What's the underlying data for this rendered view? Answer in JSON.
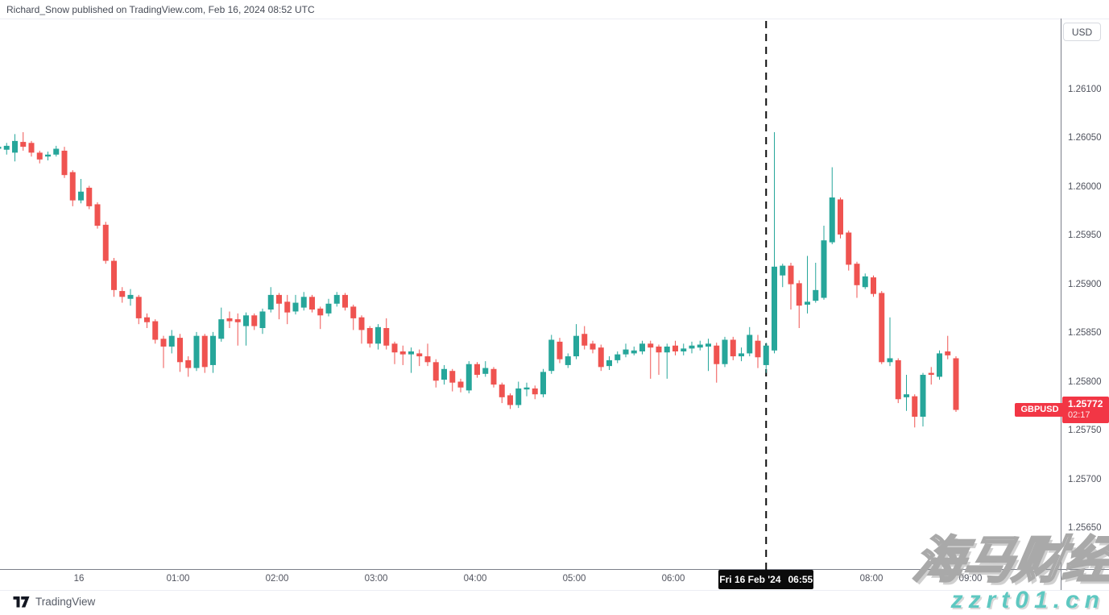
{
  "attribution": "Richard_Snow published on TradingView.com, Feb 16, 2024 08:52 UTC",
  "currency_button_label": "USD",
  "symbol_tag": "GBPUSD",
  "last_price_label": {
    "price": "1.25772",
    "countdown": "02:17"
  },
  "crosshair_label": {
    "date": "Fri 16 Feb '24",
    "time": "06:55"
  },
  "logo_text": "TradingView",
  "watermark": {
    "line1": "海马财经",
    "line2": "zzrt01.cn"
  },
  "colors": {
    "up": "#26a69a",
    "down": "#ef5350",
    "label_bg": "#f23645",
    "axis_line": "#7b7e89",
    "event_line": "#0b0b0b",
    "watermark_url": "#5ec8c1"
  },
  "chart_data": {
    "type": "candlestick",
    "symbol": "GBPUSD",
    "quote_currency": "USD",
    "interval_minutes": 5,
    "last_price": 1.25772,
    "event_line_time": "06:55",
    "y_axis": {
      "min": 1.2561,
      "max": 1.26135,
      "tick_labels": [
        "1.26100",
        "1.26050",
        "1.26000",
        "1.25950",
        "1.25900",
        "1.25850",
        "1.25800",
        "1.25750",
        "1.25700",
        "1.25650"
      ]
    },
    "x_axis": {
      "labels": [
        {
          "text": "16",
          "hour": 0
        },
        {
          "text": "01:00",
          "hour": 1
        },
        {
          "text": "02:00",
          "hour": 2
        },
        {
          "text": "03:00",
          "hour": 3
        },
        {
          "text": "04:00",
          "hour": 4
        },
        {
          "text": "05:00",
          "hour": 5
        },
        {
          "text": "06:00",
          "hour": 6
        },
        {
          "text": "08:00",
          "hour": 8
        },
        {
          "text": "09:00",
          "hour": 9
        }
      ]
    },
    "candles": [
      [
        "23:10",
        1.2604,
        1.26044,
        1.26036,
        1.26042
      ],
      [
        "23:15",
        1.26039,
        1.26046,
        1.26034,
        1.26043
      ],
      [
        "23:20",
        1.26036,
        1.26055,
        1.26027,
        1.26048
      ],
      [
        "23:25",
        1.26047,
        1.26057,
        1.26038,
        1.26042
      ],
      [
        "23:30",
        1.26046,
        1.26048,
        1.26032,
        1.26036
      ],
      [
        "23:35",
        1.26036,
        1.26038,
        1.26025,
        1.26029
      ],
      [
        "23:40",
        1.26032,
        1.26037,
        1.26028,
        1.26034
      ],
      [
        "23:45",
        1.26034,
        1.26043,
        1.26032,
        1.2604
      ],
      [
        "23:50",
        1.26038,
        1.26042,
        1.2601,
        1.26013
      ],
      [
        "23:55",
        1.26016,
        1.26018,
        1.25981,
        1.25987
      ],
      [
        "00:00",
        1.25987,
        1.26009,
        1.25984,
        1.25996
      ],
      [
        "00:05",
        1.26,
        1.26002,
        1.25978,
        1.25981
      ],
      [
        "00:10",
        1.25983,
        1.25985,
        1.25958,
        1.25961
      ],
      [
        "00:15",
        1.25962,
        1.25965,
        1.25922,
        1.25925
      ],
      [
        "00:20",
        1.25925,
        1.25928,
        1.25888,
        1.25895
      ],
      [
        "00:25",
        1.25894,
        1.25898,
        1.25882,
        1.25888
      ],
      [
        "00:30",
        1.25886,
        1.25896,
        1.25879,
        1.2589
      ],
      [
        "00:35",
        1.25888,
        1.2589,
        1.2586,
        1.25866
      ],
      [
        "00:40",
        1.25867,
        1.25871,
        1.25856,
        1.25862
      ],
      [
        "00:45",
        1.25863,
        1.25865,
        1.2584,
        1.25844
      ],
      [
        "00:50",
        1.25845,
        1.25848,
        1.25815,
        1.25837
      ],
      [
        "00:55",
        1.25837,
        1.25854,
        1.2583,
        1.25848
      ],
      [
        "01:00",
        1.25846,
        1.2585,
        1.25811,
        1.25821
      ],
      [
        "01:05",
        1.25823,
        1.25827,
        1.25806,
        1.25815
      ],
      [
        "01:10",
        1.25815,
        1.25852,
        1.25812,
        1.25848
      ],
      [
        "01:15",
        1.25848,
        1.2585,
        1.2581,
        1.25816
      ],
      [
        "01:20",
        1.25818,
        1.25852,
        1.2581,
        1.25848
      ],
      [
        "01:25",
        1.25845,
        1.25877,
        1.25842,
        1.25865
      ],
      [
        "01:30",
        1.25866,
        1.25873,
        1.25856,
        1.25863
      ],
      [
        "01:35",
        1.25865,
        1.25871,
        1.25838,
        1.25862
      ],
      [
        "01:40",
        1.25858,
        1.25872,
        1.25838,
        1.25869
      ],
      [
        "01:45",
        1.25869,
        1.25871,
        1.25854,
        1.25858
      ],
      [
        "01:50",
        1.25856,
        1.25876,
        1.2585,
        1.25873
      ],
      [
        "01:55",
        1.25875,
        1.25898,
        1.25872,
        1.2589
      ],
      [
        "02:00",
        1.2589,
        1.25892,
        1.25865,
        1.25881
      ],
      [
        "02:05",
        1.25883,
        1.2589,
        1.2586,
        1.25872
      ],
      [
        "02:10",
        1.25873,
        1.2589,
        1.2587,
        1.25882
      ],
      [
        "02:15",
        1.25877,
        1.25893,
        1.25874,
        1.25888
      ],
      [
        "02:20",
        1.25888,
        1.2589,
        1.25872,
        1.25875
      ],
      [
        "02:25",
        1.25876,
        1.25878,
        1.25855,
        1.25869
      ],
      [
        "02:30",
        1.25871,
        1.25886,
        1.25868,
        1.25881
      ],
      [
        "02:35",
        1.25881,
        1.25893,
        1.25878,
        1.2589
      ],
      [
        "02:40",
        1.2589,
        1.25892,
        1.25874,
        1.25877
      ],
      [
        "02:45",
        1.25878,
        1.2588,
        1.25854,
        1.25866
      ],
      [
        "02:50",
        1.25867,
        1.25869,
        1.2584,
        1.25854
      ],
      [
        "02:55",
        1.25856,
        1.25858,
        1.25836,
        1.2584
      ],
      [
        "03:00",
        1.2584,
        1.2586,
        1.25834,
        1.25857
      ],
      [
        "03:05",
        1.25856,
        1.25866,
        1.25834,
        1.25838
      ],
      [
        "03:10",
        1.2584,
        1.25842,
        1.25819,
        1.25831
      ],
      [
        "03:15",
        1.25832,
        1.25838,
        1.25818,
        1.25829
      ],
      [
        "03:20",
        1.25829,
        1.25836,
        1.2581,
        1.25832
      ],
      [
        "03:25",
        1.2583,
        1.25834,
        1.25817,
        1.25827
      ],
      [
        "03:30",
        1.25827,
        1.2584,
        1.25817,
        1.25821
      ],
      [
        "03:35",
        1.25821,
        1.25824,
        1.25795,
        1.25802
      ],
      [
        "03:40",
        1.25803,
        1.25818,
        1.25798,
        1.25814
      ],
      [
        "03:45",
        1.25812,
        1.25814,
        1.25791,
        1.258
      ],
      [
        "03:50",
        1.25801,
        1.25804,
        1.2579,
        1.25795
      ],
      [
        "03:55",
        1.25792,
        1.25822,
        1.25789,
        1.25819
      ],
      [
        "04:00",
        1.25819,
        1.25821,
        1.25805,
        1.25808
      ],
      [
        "04:05",
        1.25809,
        1.25822,
        1.25806,
        1.25815
      ],
      [
        "04:10",
        1.25814,
        1.25816,
        1.25795,
        1.25798
      ],
      [
        "04:15",
        1.25798,
        1.258,
        1.25779,
        1.25785
      ],
      [
        "04:20",
        1.25787,
        1.25789,
        1.25773,
        1.25777
      ],
      [
        "04:25",
        1.25777,
        1.25801,
        1.25774,
        1.25794
      ],
      [
        "04:30",
        1.25793,
        1.258,
        1.25786,
        1.25795
      ],
      [
        "04:35",
        1.25794,
        1.25797,
        1.25783,
        1.25788
      ],
      [
        "04:40",
        1.25788,
        1.25814,
        1.25785,
        1.25811
      ],
      [
        "04:45",
        1.25812,
        1.25849,
        1.25809,
        1.25844
      ],
      [
        "04:50",
        1.25842,
        1.25846,
        1.2582,
        1.25824
      ],
      [
        "04:55",
        1.25818,
        1.2583,
        1.25815,
        1.25827
      ],
      [
        "05:00",
        1.25827,
        1.2586,
        1.25824,
        1.25848
      ],
      [
        "05:05",
        1.2585,
        1.25858,
        1.25834,
        1.25838
      ],
      [
        "05:10",
        1.2584,
        1.25843,
        1.2583,
        1.25834
      ],
      [
        "05:15",
        1.25836,
        1.25839,
        1.25812,
        1.25816
      ],
      [
        "05:20",
        1.25817,
        1.25827,
        1.25813,
        1.25823
      ],
      [
        "05:25",
        1.25823,
        1.25832,
        1.2582,
        1.25829
      ],
      [
        "05:30",
        1.25829,
        1.2584,
        1.25826,
        1.25834
      ],
      [
        "05:35",
        1.2583,
        1.25837,
        1.25828,
        1.25833
      ],
      [
        "05:40",
        1.25832,
        1.25843,
        1.25829,
        1.2584
      ],
      [
        "05:45",
        1.2584,
        1.25843,
        1.25804,
        1.25836
      ],
      [
        "05:50",
        1.25837,
        1.25839,
        1.25808,
        1.25831
      ],
      [
        "05:55",
        1.25831,
        1.2584,
        1.25804,
        1.25837
      ],
      [
        "06:00",
        1.25838,
        1.25843,
        1.25828,
        1.25832
      ],
      [
        "06:05",
        1.25832,
        1.2584,
        1.25828,
        1.25835
      ],
      [
        "06:10",
        1.25835,
        1.25842,
        1.2583,
        1.25838
      ],
      [
        "06:15",
        1.25836,
        1.25843,
        1.25833,
        1.25839
      ],
      [
        "06:20",
        1.25837,
        1.25845,
        1.25812,
        1.2584
      ],
      [
        "06:25",
        1.25838,
        1.25841,
        1.258,
        1.25819
      ],
      [
        "06:30",
        1.25819,
        1.25847,
        1.25816,
        1.25844
      ],
      [
        "06:35",
        1.25844,
        1.25847,
        1.25823,
        1.25827
      ],
      [
        "06:40",
        1.25827,
        1.25836,
        1.25822,
        1.2583
      ],
      [
        "06:45",
        1.2583,
        1.25857,
        1.25827,
        1.25849
      ],
      [
        "06:50",
        1.25843,
        1.25849,
        1.25815,
        1.25826
      ],
      [
        "06:55",
        1.25818,
        1.25841,
        1.2581,
        1.25838
      ],
      [
        "07:00",
        1.25833,
        1.26057,
        1.2583,
        1.25919
      ],
      [
        "07:05",
        1.2591,
        1.25922,
        1.25898,
        1.2592
      ],
      [
        "07:10",
        1.2592,
        1.25923,
        1.25875,
        1.25901
      ],
      [
        "07:15",
        1.25902,
        1.25905,
        1.25856,
        1.25879
      ],
      [
        "07:20",
        1.2588,
        1.2593,
        1.25871,
        1.25883
      ],
      [
        "07:25",
        1.25884,
        1.25923,
        1.25882,
        1.25895
      ],
      [
        "07:30",
        1.25887,
        1.25961,
        1.25885,
        1.25946
      ],
      [
        "07:35",
        1.25944,
        1.26021,
        1.25942,
        1.2599
      ],
      [
        "07:40",
        1.25988,
        1.2599,
        1.25948,
        1.25952
      ],
      [
        "07:45",
        1.25954,
        1.25956,
        1.25915,
        1.25921
      ],
      [
        "07:50",
        1.25922,
        1.25924,
        1.25887,
        1.259
      ],
      [
        "07:55",
        1.25898,
        1.25912,
        1.25896,
        1.25909
      ],
      [
        "08:00",
        1.25908,
        1.2591,
        1.25888,
        1.25891
      ],
      [
        "08:05",
        1.25892,
        1.25894,
        1.25819,
        1.25821
      ],
      [
        "08:10",
        1.25821,
        1.25867,
        1.25817,
        1.25825
      ],
      [
        "08:15",
        1.25823,
        1.25825,
        1.25779,
        1.25783
      ],
      [
        "08:20",
        1.25785,
        1.25808,
        1.25771,
        1.25788
      ],
      [
        "08:25",
        1.25786,
        1.25788,
        1.25754,
        1.25765
      ],
      [
        "08:30",
        1.25765,
        1.2581,
        1.25755,
        1.25808
      ],
      [
        "08:35",
        1.2581,
        1.25816,
        1.25798,
        1.25808
      ],
      [
        "08:40",
        1.25806,
        1.25833,
        1.25803,
        1.2583
      ],
      [
        "08:45",
        1.25832,
        1.25848,
        1.25824,
        1.25828
      ],
      [
        "08:50",
        1.25825,
        1.25827,
        1.2577,
        1.25772
      ]
    ]
  }
}
